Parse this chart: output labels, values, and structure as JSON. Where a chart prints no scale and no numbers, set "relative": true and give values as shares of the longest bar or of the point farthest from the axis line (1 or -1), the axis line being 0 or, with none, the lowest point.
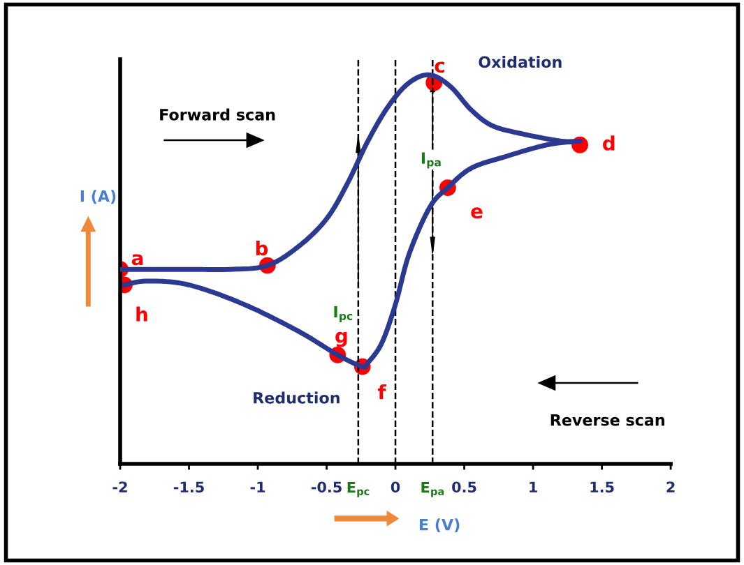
{
  "chart_data": {
    "type": "line",
    "relative": true,
    "xlabel": "E (V)",
    "ylabel": "I (A)",
    "xlim": [
      -2,
      2
    ],
    "xticks": [
      -2,
      -1.5,
      -1,
      -0.5,
      0,
      0.5,
      1,
      1.5,
      2
    ],
    "series": [
      {
        "color": "#2b3990",
        "x": [
          -2,
          -1.5,
          -1.2,
          -0.93,
          -0.7,
          -0.5,
          -0.35,
          -0.2,
          -0.05,
          0.1,
          0.25,
          0.4,
          0.55,
          0.7,
          0.9,
          1.2,
          1.34
        ],
        "values": [
          0.5,
          0.5,
          0.5,
          0.51,
          0.56,
          0.63,
          0.72,
          0.83,
          0.92,
          0.98,
          1.0,
          0.97,
          0.91,
          0.87,
          0.85,
          0.83,
          0.83
        ]
      },
      {
        "color": "#2b3990",
        "x": [
          1.34,
          1.1,
          0.8,
          0.55,
          0.38,
          0.25,
          0.1,
          0.0,
          -0.1,
          -0.2,
          -0.24,
          -0.42,
          -0.7,
          -1.1,
          -1.5,
          -1.8,
          -1.97
        ],
        "values": [
          0.83,
          0.82,
          0.79,
          0.76,
          0.71,
          0.66,
          0.54,
          0.41,
          0.31,
          0.26,
          0.25,
          0.28,
          0.34,
          0.41,
          0.46,
          0.47,
          0.46
        ]
      },
      {
        "type": "scatter",
        "color": "#ff0000",
        "marker": "circle",
        "x": [
          -2,
          -0.93,
          0.28,
          1.34,
          0.38,
          -0.24,
          -0.42,
          -1.97
        ],
        "values": [
          0.5,
          0.51,
          0.98,
          0.82,
          0.71,
          0.25,
          0.28,
          0.46
        ]
      }
    ],
    "ref_lines": [
      {
        "axis": "x",
        "value": -0.27,
        "label": "E$_{pc}$",
        "color": "#000000",
        "line_style": "dashed"
      },
      {
        "axis": "x",
        "value": 0,
        "color": "#000000",
        "line_style": "dashed"
      },
      {
        "axis": "x",
        "value": 0.27,
        "label": "E$_{pa}$",
        "color": "#000000",
        "line_style": "dashed"
      }
    ],
    "annotations": [
      {
        "text": "a",
        "x": -2,
        "y": 0.5
      },
      {
        "text": "b",
        "x": -0.93,
        "y": 0.51
      },
      {
        "text": "c",
        "x": 0.28,
        "y": 0.98
      },
      {
        "text": "d",
        "x": 1.34,
        "y": 0.82
      },
      {
        "text": "e",
        "x": 0.38,
        "y": 0.71
      },
      {
        "text": "f",
        "x": -0.24,
        "y": 0.25
      },
      {
        "text": "g",
        "x": -0.42,
        "y": 0.28
      },
      {
        "text": "h",
        "x": -1.97,
        "y": 0.46
      },
      "I$_{pc}$",
      "I$_{pa}$",
      "Forward scan",
      "Reverse scan",
      "Oxidation",
      "Reduction"
    ],
    "grid": false,
    "legend": false
  }
}
